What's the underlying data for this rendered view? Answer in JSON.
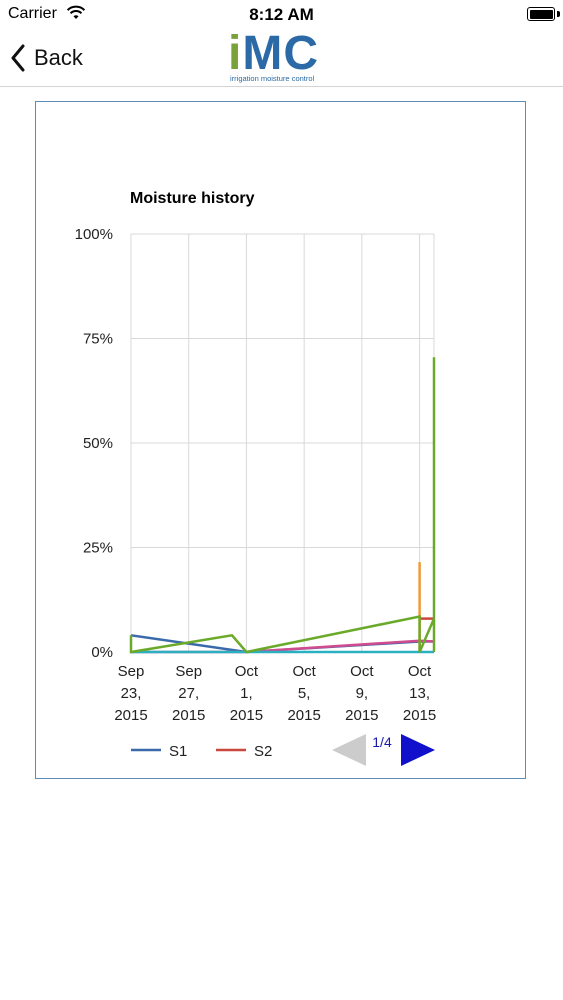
{
  "status_bar": {
    "carrier": "Carrier",
    "time": "8:12 AM"
  },
  "nav": {
    "back_label": "Back"
  },
  "logo": {
    "letter_i": "i",
    "letters_mc": "MC",
    "tagline": "irrigation moisture control"
  },
  "chart_data": {
    "type": "line",
    "title": "Moisture history",
    "y_ticks": [
      "100%",
      "75%",
      "50%",
      "25%",
      "0%"
    ],
    "ylim": [
      0,
      100
    ],
    "x_ticks": [
      [
        "Sep",
        "23,",
        "2015"
      ],
      [
        "Sep",
        "27,",
        "2015"
      ],
      [
        "Oct",
        "1,",
        "2015"
      ],
      [
        "Oct",
        "5,",
        "2015"
      ],
      [
        "Oct",
        "9,",
        "2015"
      ],
      [
        "Oct",
        "13,",
        "2015"
      ]
    ],
    "xlim": [
      "2015-09-23",
      "2015-10-14"
    ],
    "grid": true,
    "legend_position": "bottom-left",
    "legend": [
      {
        "name": "S1",
        "color": "#3a6aab"
      },
      {
        "name": "S2",
        "color": "#c9473d"
      }
    ],
    "series": [
      {
        "name": "S1",
        "color": "#3a6aab",
        "points": [
          [
            "2015-09-23",
            4
          ],
          [
            "2015-10-01",
            0
          ],
          [
            "2015-10-13",
            2.5
          ],
          [
            "2015-10-14",
            2.5
          ]
        ]
      },
      {
        "name": "S2",
        "color": "#c9473d",
        "points": [
          [
            "2015-10-13",
            8
          ],
          [
            "2015-10-14",
            8
          ]
        ]
      },
      {
        "color": "#d04c8e",
        "points": [
          [
            "2015-09-23",
            0
          ],
          [
            "2015-10-01",
            0
          ],
          [
            "2015-10-13",
            2.7
          ],
          [
            "2015-10-14",
            2.5
          ]
        ]
      },
      {
        "color": "#f09a3a",
        "points": [
          [
            "2015-10-13",
            0
          ],
          [
            "2015-10-13",
            21.5
          ],
          [
            "2015-10-13",
            0
          ]
        ]
      },
      {
        "color": "#2ab0c0",
        "points": [
          [
            "2015-09-23",
            0
          ],
          [
            "2015-10-14",
            0
          ]
        ]
      },
      {
        "color": "#6aaa2a",
        "points": [
          [
            "2015-09-23",
            4
          ],
          [
            "2015-09-23",
            0
          ],
          [
            "2015-09-30",
            4
          ],
          [
            "2015-10-01",
            0
          ],
          [
            "2015-10-13",
            8.5
          ],
          [
            "2015-10-13",
            0
          ],
          [
            "2015-10-14",
            8
          ],
          [
            "2015-10-14",
            0
          ],
          [
            "2015-10-14",
            70.5
          ]
        ]
      }
    ]
  },
  "pager": {
    "label": "1/4",
    "prev_color": "#cccccc",
    "next_color": "#1111cc"
  }
}
